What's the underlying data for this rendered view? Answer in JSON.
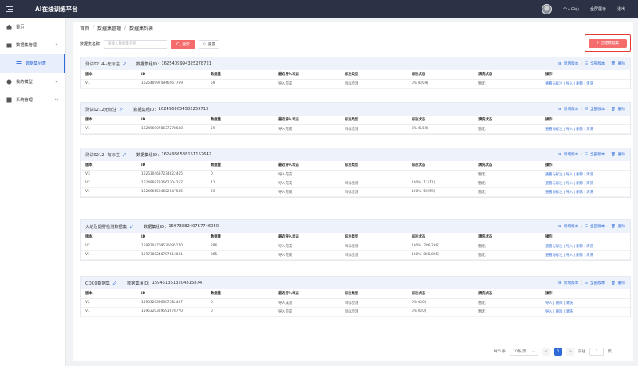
{
  "app": {
    "title": "AI在线训练平台"
  },
  "header": {
    "personal_center": "个人中心",
    "fullscreen": "全屏展示",
    "logout": "退出"
  },
  "sidebar": {
    "items": [
      {
        "label": "首页"
      },
      {
        "label": "数据集管理"
      },
      {
        "label": "数据集列表"
      },
      {
        "label": "我的模型"
      },
      {
        "label": "系统管理"
      }
    ]
  },
  "breadcrumb": [
    "首页",
    "数据集管理",
    "数据集列表"
  ],
  "search": {
    "label": "数据集名称",
    "placeholder": "请输入数据集名称",
    "search_btn": "搜索",
    "reset_btn": "重置"
  },
  "create_btn": "+ 创建数据集",
  "columns": [
    "版本",
    "ID",
    "数据量",
    "最近导入状态",
    "标注类型",
    "标注状态",
    "清洗状态",
    "操作"
  ],
  "card_actions": {
    "new_version": "新增版本",
    "all_versions": "全部版本",
    "delete": "删除"
  },
  "datasets": [
    {
      "name": "测试0214--无标注",
      "group_label": "数据集组ID：",
      "group_id": "1625409994325278721",
      "rows": [
        {
          "version": "V1",
          "id": "1625409974946467769",
          "count": "59",
          "import_status": "导入完成",
          "label_type": "目标检测",
          "label_status": "0%  (0/59)",
          "clean_status": "暂无",
          "ops": "查看与标注  |  导入  |  删除  |  清洗"
        }
      ]
    },
    {
      "name": "测试0212无标注",
      "group_label": "数据集组ID：",
      "group_id": "1624969054582259713",
      "rows": [
        {
          "version": "V1",
          "id": "1624969078637278688",
          "count": "59",
          "import_status": "导入完成",
          "label_type": "目标检测",
          "label_status": "8%  (5/59)",
          "clean_status": "暂无",
          "ops": "查看与标注  |  导入  |  删除  |  清洗"
        }
      ]
    },
    {
      "name": "测试0212--有标注",
      "group_label": "数据集组ID：",
      "group_id": "1624966588151152642",
      "rows": [
        {
          "version": "V3",
          "id": "1625304637234622465",
          "count": "0",
          "import_status": "导入完成",
          "label_type": "",
          "label_status": "",
          "clean_status": "暂无",
          "ops": "查看与标注  |  导入  |  删除  |  清洗"
        },
        {
          "version": "V2",
          "id": "1624968733662304257",
          "count": "11",
          "import_status": "导入完成",
          "label_type": "目标检测",
          "label_status": "100%  (11/11)",
          "clean_status": "暂无",
          "ops": "查看与标注  |  导入  |  删除  |  清洗"
        },
        {
          "version": "V1",
          "id": "1624966594602147585",
          "count": "59",
          "import_status": "导入完成",
          "label_type": "目标检测",
          "label_status": "100%  (59/59)",
          "clean_status": "暂无",
          "ops": "查看与标注  |  导入  |  删除  |  清洗"
        }
      ]
    },
    {
      "name": "火焰及烟雾检测数据集",
      "group_label": "数据集组ID：",
      "group_id": "1597388240767746050",
      "rows": [
        {
          "version": "V2",
          "id": "1598204709530095170",
          "count": "286",
          "import_status": "导入完成",
          "label_type": "目标检测",
          "label_status": "100%  (286/286)",
          "clean_status": "暂无",
          "ops": "查看与标注  |  导入  |  删除  |  清洗"
        },
        {
          "version": "V1",
          "id": "1597388240787613681",
          "count": "865",
          "import_status": "导入完成",
          "label_type": "目标检测",
          "label_status": "100%  (865/865)",
          "clean_status": "暂无",
          "ops": "查看与标注  |  导入  |  删除  |  清洗"
        }
      ]
    },
    {
      "name": "COCO数据集",
      "group_label": "数据集组ID：",
      "group_id": "1594513613204815874",
      "rows": [
        {
          "version": "V2",
          "id": "1595320396307582487",
          "count": "0",
          "import_status": "导入成功",
          "label_type": "目标检测",
          "label_status": "0%  (0/0)",
          "clean_status": "暂无",
          "ops": "导入  |  删除  |  清洗"
        },
        {
          "version": "V1",
          "id": "1595320329591678770",
          "count": "0",
          "import_status": "导入完成",
          "label_type": "目标检测",
          "label_status": "0%  (0/0)",
          "clean_status": "暂无",
          "ops": "导入  |  删除  |  清洗"
        }
      ]
    }
  ],
  "pagination": {
    "total": "共 5 条",
    "page_size": "10条/页",
    "prev": "<",
    "current": "1",
    "next": ">",
    "goto_label": "前往",
    "goto_value": "1",
    "page_suffix": "页"
  }
}
